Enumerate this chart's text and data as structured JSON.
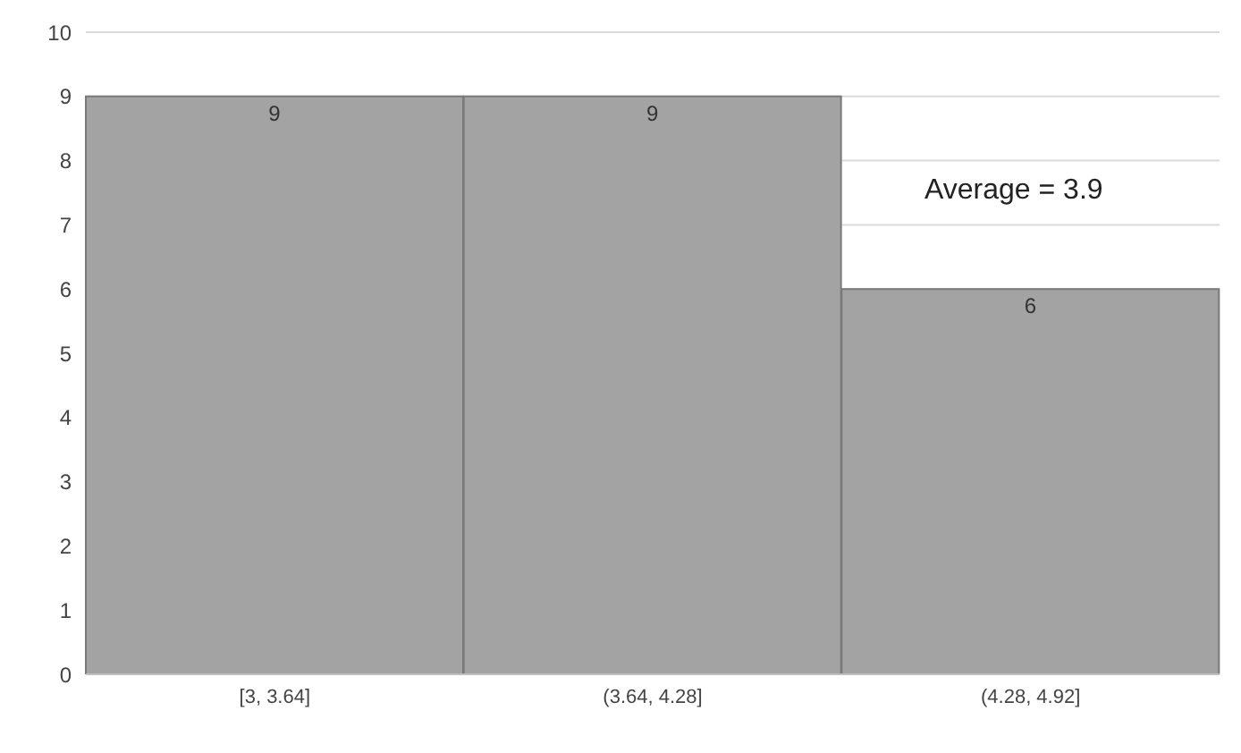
{
  "chart_data": {
    "type": "bar",
    "categories": [
      "[3, 3.64]",
      "(3.64, 4.28]",
      "(4.28, 4.92]"
    ],
    "values": [
      9,
      9,
      6
    ],
    "color": "#a3a3a3",
    "ylim": [
      0,
      10
    ],
    "yticks": [
      0,
      1,
      2,
      3,
      4,
      5,
      6,
      7,
      8,
      9,
      10
    ],
    "grid": "y",
    "data_labels": true,
    "annotations": [
      "Average = 3.9"
    ]
  }
}
